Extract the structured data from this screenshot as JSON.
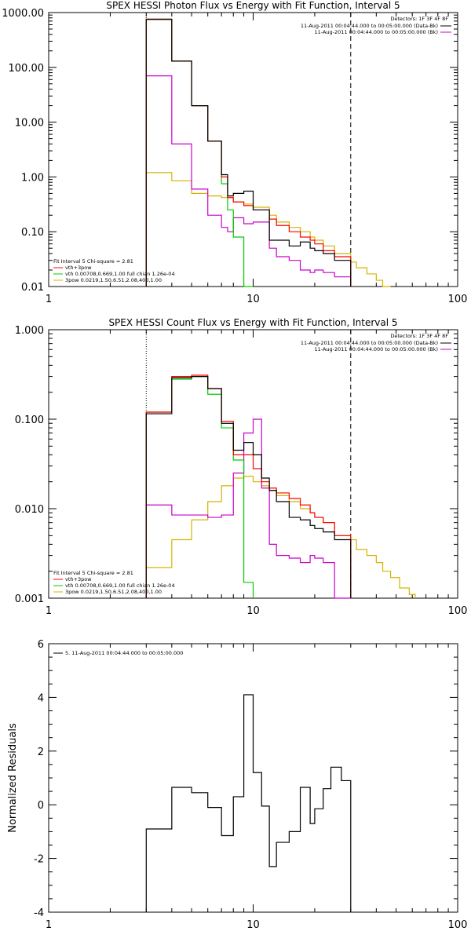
{
  "colors": {
    "total": "#000000",
    "vth_3pow": "#ff0000",
    "vth": "#00cc00",
    "three_pow": "#d4b400",
    "bk": "#cc00cc",
    "axes": "#000000"
  },
  "chart_data": [
    {
      "type": "line",
      "title": "SPEX HESSI Photon Flux vs Energy with Fit Function, Interval 5",
      "xscale": "log",
      "yscale": "log",
      "xlim": [
        1,
        100
      ],
      "ylim": [
        0.01,
        1000
      ],
      "xticks": [
        "1",
        "10",
        "100"
      ],
      "yticks": [
        "1000.00",
        "100.00",
        "10.00",
        "1.00",
        "0.10",
        "0.01"
      ],
      "detectors": "Detectors: 1F 3F 4F 8F",
      "legend_right": [
        "11-Aug-2011 00:04:44.000 to 00:05:00.000 (Data-Bk)",
        "11-Aug-2011 00:04:44.000 to 00:05:00.000 (Bk)"
      ],
      "legend_left": [
        "Fit Interval 5   Chi-square = 2.81",
        "vth+3pow",
        "vth 0.00708,0.669,1.00   full chian 1.26e-04",
        "3pow 0.0219,1.50,6.51,2.08,400,1.00"
      ],
      "dotted_x": 3,
      "dashed_x": 30,
      "edges": [
        3,
        4,
        5,
        6,
        7,
        7.5,
        8,
        9,
        10,
        12,
        13,
        15,
        17,
        19,
        20,
        22,
        25,
        30
      ],
      "series": [
        {
          "key": "total",
          "values": [
            750,
            130,
            20,
            4.5,
            1.1,
            0.45,
            0.5,
            0.55,
            0.25,
            0.07,
            0.07,
            0.055,
            0.065,
            0.05,
            0.045,
            0.04,
            0.03
          ]
        },
        {
          "key": "vth_3pow",
          "values": [
            760,
            130,
            20,
            4.5,
            1.0,
            0.42,
            0.35,
            0.3,
            0.25,
            0.17,
            0.13,
            0.1,
            0.08,
            0.07,
            0.06,
            0.045,
            0.035
          ]
        },
        {
          "key": "vth",
          "values": [
            760,
            130,
            20,
            4.5,
            0.75,
            0.25,
            0.08,
            0.01
          ]
        },
        {
          "key": "three_pow",
          "edges": [
            3,
            4,
            5,
            6,
            7,
            8,
            9,
            10,
            12,
            13,
            15,
            17,
            19,
            20,
            22,
            25,
            30,
            32,
            36,
            40,
            43,
            47
          ],
          "values": [
            1.2,
            0.85,
            0.5,
            0.45,
            0.42,
            0.35,
            0.32,
            0.28,
            0.2,
            0.15,
            0.12,
            0.1,
            0.08,
            0.07,
            0.055,
            0.04,
            0.028,
            0.022,
            0.017,
            0.013,
            0.01
          ]
        },
        {
          "key": "bk",
          "values": [
            70,
            4,
            0.6,
            0.2,
            0.12,
            0.1,
            0.18,
            0.14,
            0.15,
            0.05,
            0.035,
            0.03,
            0.02,
            0.018,
            0.02,
            0.018,
            0.015
          ]
        }
      ]
    },
    {
      "type": "line",
      "title": "SPEX HESSI Count Flux vs Energy with Fit Function, Interval 5",
      "xscale": "log",
      "yscale": "log",
      "xlim": [
        1,
        100
      ],
      "ylim": [
        0.001,
        1
      ],
      "xticks": [
        "1",
        "10",
        "100"
      ],
      "yticks": [
        "1.000",
        "0.100",
        "0.010",
        "0.001"
      ],
      "ylabel": "",
      "detectors": "Detectors: 1F 3F 4F 8F",
      "legend_right": [
        "11-Aug-2011 00:04:44.000 to 00:05:00.000 (Data-Bk)",
        "11-Aug-2011 00:04:44.000 to 00:05:00.000 (Bk)"
      ],
      "legend_left": [
        "Fit Interval 5   Chi-square = 2.81",
        "vth+3pow",
        "vth 0.00708,0.669,1.00   full chian 1.26e-04",
        "3pow 0.0219,1.50,6.51,2.08,400,1.00"
      ],
      "dotted_x": 3,
      "dashed_x": 30,
      "edges": [
        3,
        4,
        5,
        6,
        7,
        8,
        9,
        10,
        11,
        12,
        13,
        15,
        17,
        19,
        20,
        22,
        25,
        30
      ],
      "series": [
        {
          "key": "total",
          "values": [
            0.115,
            0.29,
            0.3,
            0.22,
            0.09,
            0.045,
            0.055,
            0.04,
            0.022,
            0.016,
            0.012,
            0.008,
            0.0075,
            0.0065,
            0.006,
            0.0055,
            0.0045
          ]
        },
        {
          "key": "vth_3pow",
          "values": [
            0.12,
            0.3,
            0.31,
            0.22,
            0.095,
            0.04,
            0.04,
            0.028,
            0.02,
            0.017,
            0.015,
            0.013,
            0.011,
            0.009,
            0.008,
            0.007,
            0.005
          ]
        },
        {
          "key": "vth",
          "values": [
            0.12,
            0.28,
            0.3,
            0.19,
            0.08,
            0.035,
            0.0015
          ]
        },
        {
          "key": "three_pow",
          "edges": [
            3,
            4,
            5,
            6,
            7,
            8,
            9,
            10,
            11,
            12,
            13,
            15,
            17,
            19,
            20,
            22,
            25,
            30,
            32,
            36,
            40,
            43,
            47,
            52,
            58,
            62
          ],
          "values": [
            0.0022,
            0.0045,
            0.0075,
            0.012,
            0.018,
            0.022,
            0.023,
            0.02,
            0.018,
            0.016,
            0.014,
            0.012,
            0.01,
            0.009,
            0.008,
            0.007,
            0.005,
            0.0045,
            0.0035,
            0.003,
            0.0025,
            0.002,
            0.0017,
            0.0013,
            0.0011
          ]
        },
        {
          "key": "bk",
          "values": [
            0.011,
            0.0085,
            0.0085,
            0.008,
            0.0085,
            0.025,
            0.07,
            0.1,
            0.017,
            0.004,
            0.003,
            0.0028,
            0.0025,
            0.003,
            0.0028,
            0.0025,
            0.001
          ]
        }
      ]
    },
    {
      "type": "line",
      "title": "",
      "xscale": "log",
      "yscale": "linear",
      "xlim": [
        1,
        100
      ],
      "ylim": [
        -4,
        6
      ],
      "xticks": [
        "1",
        "10",
        "100"
      ],
      "yticks": [
        "6",
        "4",
        "2",
        "0",
        "-2",
        "-4"
      ],
      "ylabel": "Normalized Residuals",
      "legend_left": [
        "5. 11-Aug-2011 00:04:44.000 to 00:05:00.000"
      ],
      "edges": [
        3,
        4,
        5,
        6,
        7,
        8,
        9,
        10,
        11,
        12,
        13,
        15,
        17,
        19,
        20,
        22,
        24,
        27,
        30
      ],
      "series": [
        {
          "key": "total",
          "values": [
            -0.9,
            0.65,
            0.45,
            -0.1,
            -1.15,
            0.3,
            4.1,
            1.2,
            -0.05,
            -2.3,
            -1.4,
            -1.0,
            0.65,
            -0.7,
            -0.15,
            0.6,
            1.4,
            0.9
          ]
        }
      ]
    }
  ]
}
